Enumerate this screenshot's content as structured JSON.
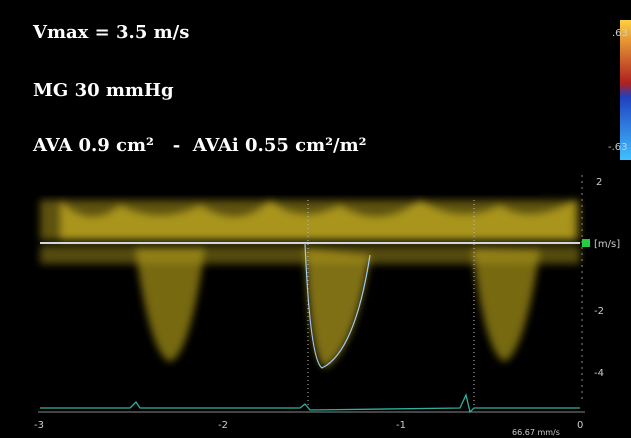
{
  "overlay": {
    "lines": [
      "Vmax = 3.5 m/s",
      "MG 30 mmHg",
      "AVA 0.9 cm²   -  AVAi 0.55 cm²/m²"
    ]
  },
  "color_bar": {
    "top": ".63",
    "bottom": "-.63"
  },
  "velocity_scale": {
    "labels": [
      "2",
      "[m/s]",
      "-2",
      "-4"
    ]
  },
  "time_axis": {
    "labels": [
      "-3",
      "-2",
      "-1",
      "0"
    ]
  },
  "sweep_speed": "66.67 mm/s"
}
